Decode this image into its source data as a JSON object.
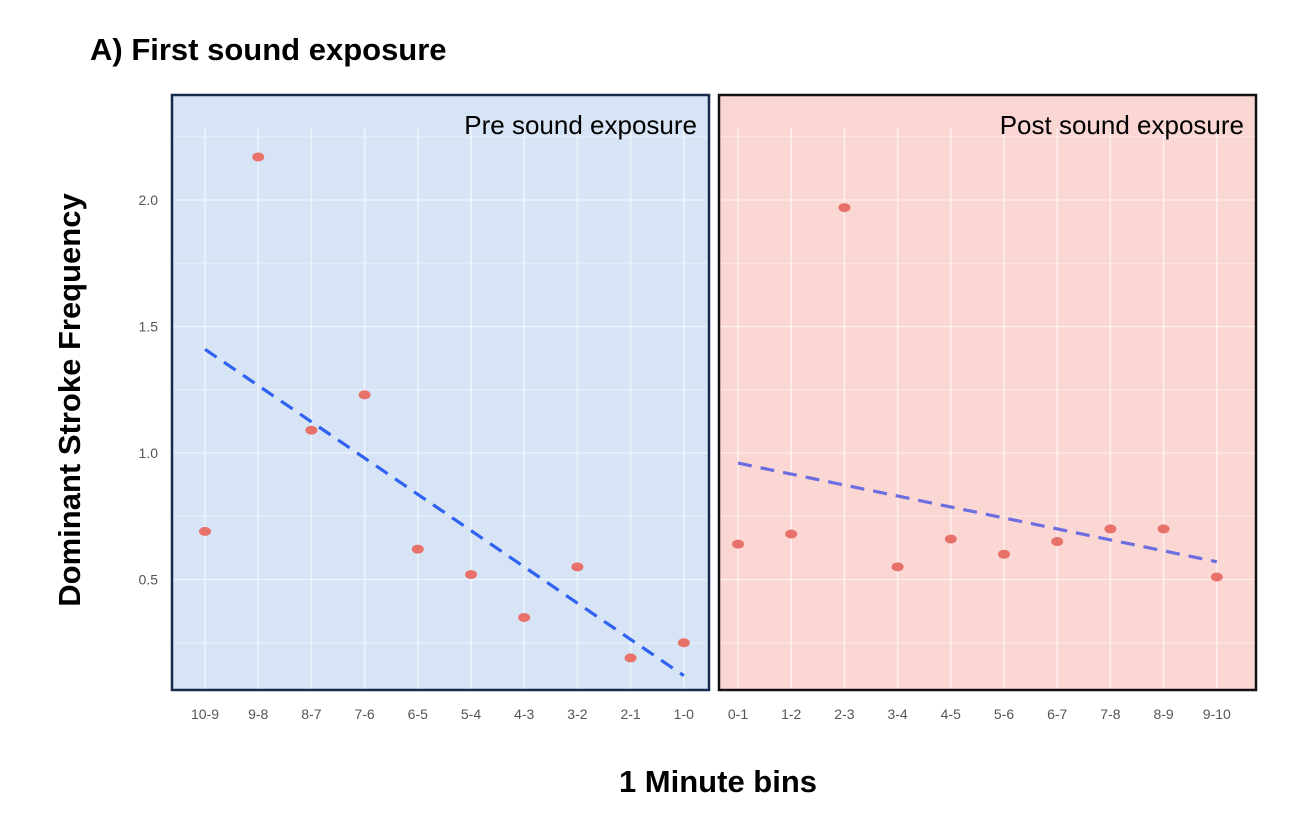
{
  "chart_data": {
    "type": "scatter",
    "title": "A) First sound exposure",
    "xlabel": "1 Minute bins",
    "ylabel": "Dominant Stroke Frequency",
    "y_ticks": [
      0.5,
      1.0,
      1.5,
      2.0
    ],
    "y_tick_labels": [
      "0.5",
      "1.0",
      "1.5",
      "2.0"
    ],
    "panels": [
      {
        "label": "Pre sound exposure",
        "background": "#d6e4f5",
        "border": "#17294d",
        "categories": [
          "10-9",
          "9-8",
          "8-7",
          "7-6",
          "6-5",
          "5-4",
          "4-3",
          "3-2",
          "2-1",
          "1-0"
        ],
        "values": [
          0.69,
          2.17,
          1.09,
          1.23,
          0.62,
          0.52,
          0.35,
          0.55,
          0.19,
          0.25
        ],
        "trendline": {
          "start": 1.41,
          "end": 0.12,
          "color": "#2f62f0"
        }
      },
      {
        "label": "Post sound exposure",
        "background": "#fbd7d4",
        "border": "#111111",
        "categories": [
          "0-1",
          "1-2",
          "2-3",
          "3-4",
          "4-5",
          "5-6",
          "6-7",
          "7-8",
          "8-9",
          "9-10"
        ],
        "values": [
          0.64,
          0.68,
          1.97,
          0.55,
          0.66,
          0.6,
          0.65,
          0.7,
          0.7,
          0.51
        ],
        "trendline": {
          "start": 0.96,
          "end": 0.57,
          "color": "#6b6de0"
        }
      }
    ],
    "point_color": "#e8716a",
    "grid": true
  }
}
